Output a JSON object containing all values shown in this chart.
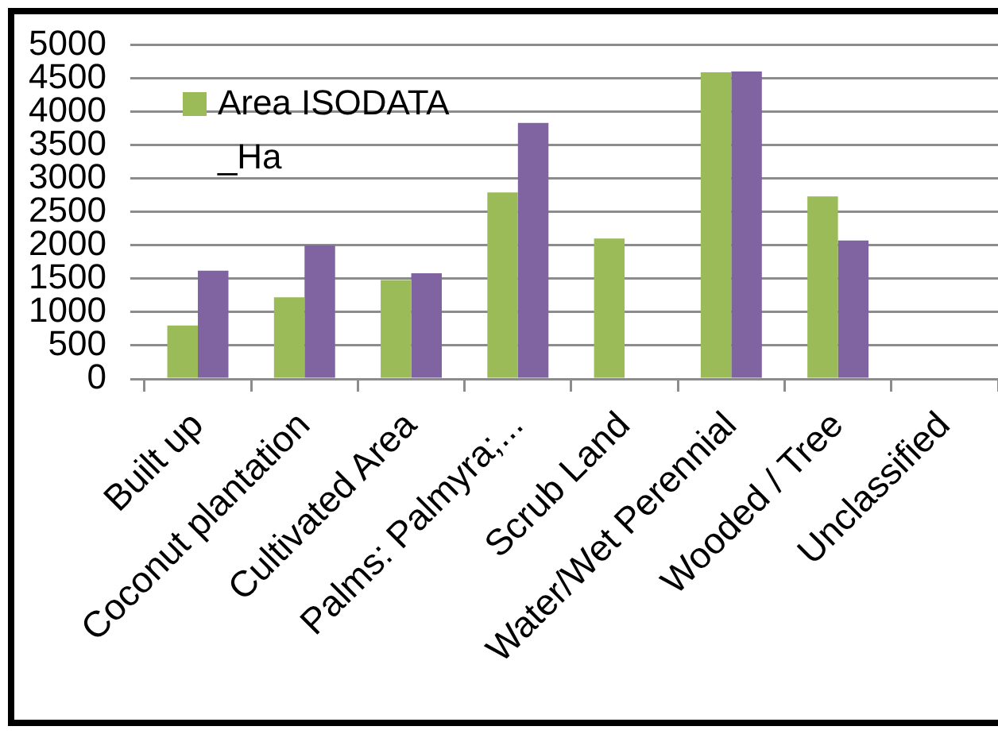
{
  "chart_data": {
    "type": "bar",
    "categories": [
      "Built up",
      "Coconut plantation",
      "Cultivated Area",
      "Palms: Palmyra;...",
      "Scrub Land",
      "Water/Wet Perennial",
      "Wooded / Tree",
      "Unclassified"
    ],
    "series": [
      {
        "name": "Area ISODATA _Ha",
        "color": "#9bbb59",
        "values": [
          800,
          1220,
          1480,
          2790,
          2100,
          4590,
          2730,
          null
        ]
      },
      {
        "color": "#8064a2",
        "values": [
          1620,
          2000,
          1580,
          3830,
          null,
          4600,
          2070,
          null
        ]
      }
    ],
    "ylim": [
      0,
      5000
    ],
    "yticks": [
      0,
      500,
      1000,
      1500,
      2000,
      2500,
      3000,
      3500,
      4000,
      4500,
      5000
    ],
    "grid": "y",
    "legend": "top left"
  }
}
